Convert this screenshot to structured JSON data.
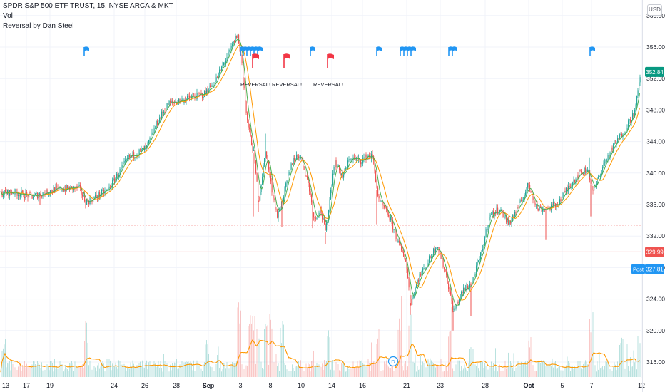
{
  "header": {
    "title": "SPDR S&P 500 ETF TRUST, 15, NYSE ARCA & MKT",
    "vol_label": "Vol",
    "indicator_label": "Reversal by Dan Steel"
  },
  "currency_button": "USD",
  "colors": {
    "up": "#26a69a",
    "down": "#ef5350",
    "ma_fast": "#4caf50",
    "ma_slow": "#ff9800",
    "flag_blue": "#2196f3",
    "flag_red": "#f23645",
    "last_price": "#089981",
    "grid": "#f0f3fa",
    "axis_text": "#131722"
  },
  "chart_data": {
    "type": "candlestick",
    "y_axis": {
      "ticks": [
        "360.00",
        "356.00",
        "352.00",
        "348.00",
        "344.00",
        "340.00",
        "336.00",
        "332.00",
        "328.00",
        "324.00",
        "320.00",
        "316.00"
      ],
      "range": [
        314.5,
        361.5
      ]
    },
    "x_axis": {
      "ticks": [
        "13",
        "17",
        "19",
        "24",
        "26",
        "28",
        "Sep",
        "3",
        "8",
        "10",
        "14",
        "16",
        "21",
        "23",
        "28",
        "Oct",
        "5",
        "7",
        "12"
      ],
      "bold": [
        "Sep",
        "Oct"
      ]
    },
    "price_path": [
      [
        0,
        337.4
      ],
      [
        18,
        337.6
      ],
      [
        45,
        337.0
      ],
      [
        75,
        337.9
      ],
      [
        110,
        338.1
      ],
      [
        120,
        336.3
      ],
      [
        150,
        337.8
      ],
      [
        180,
        342.0
      ],
      [
        205,
        343.2
      ],
      [
        220,
        346.5
      ],
      [
        235,
        348.8
      ],
      [
        260,
        349.4
      ],
      [
        285,
        350.0
      ],
      [
        300,
        351.5
      ],
      [
        318,
        354.8
      ],
      [
        332,
        357.6
      ],
      [
        338,
        354.5
      ],
      [
        345,
        347.0
      ],
      [
        355,
        342.5
      ],
      [
        362,
        336.5
      ],
      [
        372,
        343.0
      ],
      [
        380,
        338.0
      ],
      [
        388,
        334.5
      ],
      [
        395,
        336.5
      ],
      [
        410,
        341.8
      ],
      [
        420,
        342.3
      ],
      [
        432,
        338.5
      ],
      [
        440,
        334.0
      ],
      [
        448,
        335.5
      ],
      [
        456,
        332.5
      ],
      [
        468,
        341.5
      ],
      [
        480,
        339.5
      ],
      [
        490,
        342.0
      ],
      [
        505,
        341.5
      ],
      [
        515,
        342.3
      ],
      [
        522,
        342.0
      ],
      [
        530,
        336.5
      ],
      [
        545,
        334.5
      ],
      [
        560,
        330.5
      ],
      [
        568,
        329.0
      ],
      [
        575,
        323.5
      ],
      [
        585,
        326.5
      ],
      [
        598,
        328.5
      ],
      [
        612,
        331.0
      ],
      [
        625,
        327.0
      ],
      [
        635,
        322.5
      ],
      [
        648,
        325.0
      ],
      [
        660,
        326.0
      ],
      [
        675,
        330.0
      ],
      [
        685,
        334.5
      ],
      [
        700,
        335.5
      ],
      [
        712,
        333.5
      ],
      [
        728,
        336.0
      ],
      [
        740,
        338.5
      ],
      [
        752,
        335.5
      ],
      [
        765,
        335.5
      ],
      [
        780,
        336.0
      ],
      [
        798,
        338.5
      ],
      [
        812,
        340.0
      ],
      [
        824,
        340.5
      ],
      [
        830,
        337.5
      ],
      [
        845,
        341.0
      ],
      [
        860,
        343.5
      ],
      [
        875,
        345.5
      ],
      [
        890,
        348.0
      ],
      [
        897,
        352.8
      ]
    ],
    "spikes": [
      [
        56,
        336.0
      ],
      [
        120,
        335.5
      ],
      [
        355,
        334.5
      ],
      [
        362,
        335.0
      ],
      [
        372,
        345.0
      ],
      [
        395,
        333.2
      ],
      [
        438,
        333.0
      ],
      [
        456,
        331.0
      ],
      [
        528,
        333.5
      ],
      [
        575,
        322.0
      ],
      [
        635,
        320.0
      ],
      [
        660,
        321.8
      ],
      [
        765,
        331.5
      ],
      [
        828,
        334.5
      ],
      [
        826,
        342.0
      ]
    ],
    "volume_hotspots": [
      [
        5,
        0.35
      ],
      [
        120,
        0.48
      ],
      [
        290,
        0.32
      ],
      [
        335,
        0.7
      ],
      [
        350,
        0.66
      ],
      [
        355,
        0.62
      ],
      [
        362,
        0.56
      ],
      [
        372,
        0.5
      ],
      [
        380,
        0.52
      ],
      [
        395,
        0.45
      ],
      [
        460,
        0.4
      ],
      [
        530,
        0.48
      ],
      [
        560,
        0.7
      ],
      [
        575,
        0.6
      ],
      [
        630,
        0.46
      ],
      [
        660,
        0.42
      ],
      [
        742,
        0.45
      ],
      [
        828,
        0.6
      ],
      [
        830,
        0.42
      ],
      [
        870,
        0.35
      ],
      [
        895,
        0.4
      ]
    ],
    "blue_flags": [
      118,
      337,
      341,
      346,
      351,
      356,
      361,
      435,
      528,
      561,
      566,
      571,
      576,
      629,
      634,
      827
    ],
    "red_flags": [
      354,
      398,
      459
    ],
    "annotations": [
      {
        "text": "REVERSAL!",
        "x": 358
      },
      {
        "text": "REVERSAL!",
        "x": 402
      },
      {
        "text": "REVERSAL!",
        "x": 460
      }
    ],
    "hlines": [
      {
        "price": 333.4,
        "color": "#ef5350",
        "style": "dotted"
      },
      {
        "price": 329.99,
        "color": "#f7a7a7",
        "style": "solid"
      },
      {
        "price": 327.81,
        "color": "#9cd0ef",
        "style": "solid"
      }
    ],
    "price_labels": [
      {
        "text": "352.84",
        "price": 352.84,
        "color": "#089981"
      },
      {
        "text": "329.99",
        "price": 329.99,
        "color": "#ef5350"
      },
      {
        "text": "327.81",
        "price": 327.81,
        "color": "#2196f3"
      }
    ],
    "post_label": "Post",
    "dividend_marker": "D"
  }
}
